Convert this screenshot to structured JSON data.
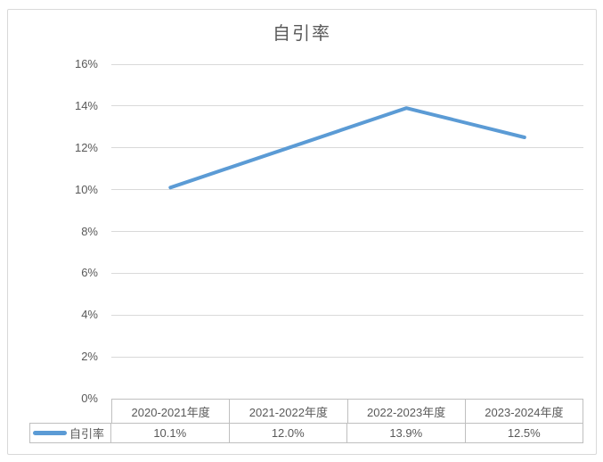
{
  "chart_title": "自引率",
  "chart_data": {
    "type": "line",
    "title": "自引率",
    "categories": [
      "2020-2021年度",
      "2021-2022年度",
      "2022-2023年度",
      "2023-2024年度"
    ],
    "series": [
      {
        "name": "自引率",
        "values": [
          10.1,
          12.0,
          13.9,
          12.5
        ],
        "values_display": [
          "10.1%",
          "12.0%",
          "13.9%",
          "12.5%"
        ],
        "color": "#5B9BD5"
      }
    ],
    "xlabel": "",
    "ylabel": "",
    "ylim": [
      0,
      16
    ],
    "y_tick_step": 2,
    "y_tick_labels": [
      "0%",
      "2%",
      "4%",
      "6%",
      "8%",
      "10%",
      "12%",
      "14%",
      "16%"
    ],
    "grid": true,
    "legend_position": "data-table-left",
    "has_data_table": true
  },
  "colors": {
    "line": "#5B9BD5",
    "gridline": "#D9D9D9",
    "frame_border": "#D9D9D9",
    "table_border": "#BFBFBF",
    "text": "#595959"
  }
}
